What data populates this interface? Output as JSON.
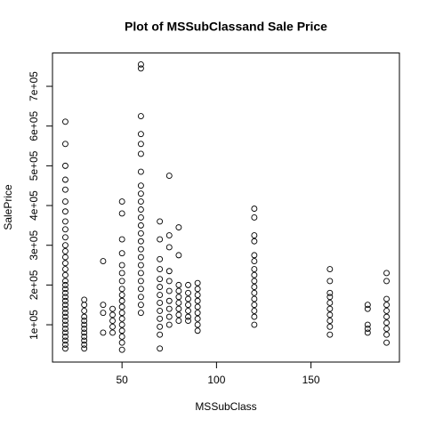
{
  "chart_data": {
    "type": "scatter",
    "title": "Plot of MSSubClassand Sale Price",
    "x_label": "MSSubClass",
    "y_label": "SalePrice",
    "xlim": [
      13.2,
      196.8
    ],
    "ylim": [
      6096,
      783804
    ],
    "xticks": [
      50,
      100,
      150
    ],
    "yticks": [
      {
        "value": 100000,
        "label": "1e+05"
      },
      {
        "value": 200000,
        "label": "2e+05"
      },
      {
        "value": 300000,
        "label": "3e+05"
      },
      {
        "value": 400000,
        "label": "4e+05"
      },
      {
        "value": 500000,
        "label": "5e+05"
      },
      {
        "value": 600000,
        "label": "6e+05"
      },
      {
        "value": 700000,
        "label": "7e+05"
      }
    ],
    "color": "#000000",
    "x": [
      20,
      20,
      20,
      20,
      20,
      20,
      20,
      20,
      20,
      20,
      20,
      20,
      20,
      20,
      20,
      20,
      20,
      20,
      20,
      20,
      20,
      20,
      20,
      20,
      20,
      20,
      20,
      20,
      20,
      20,
      20,
      20,
      20,
      20,
      30,
      30,
      30,
      30,
      30,
      30,
      30,
      30,
      30,
      30,
      30,
      30,
      40,
      40,
      40,
      40,
      45,
      45,
      45,
      45,
      45,
      50,
      50,
      50,
      50,
      50,
      50,
      50,
      50,
      50,
      50,
      50,
      50,
      50,
      50,
      50,
      50,
      50,
      50,
      60,
      60,
      60,
      60,
      60,
      60,
      60,
      60,
      60,
      60,
      60,
      60,
      60,
      60,
      60,
      60,
      60,
      60,
      60,
      60,
      60,
      60,
      60,
      60,
      70,
      70,
      70,
      70,
      70,
      70,
      70,
      70,
      70,
      70,
      70,
      70,
      70,
      75,
      75,
      75,
      75,
      75,
      75,
      75,
      75,
      75,
      75,
      80,
      80,
      80,
      80,
      80,
      80,
      80,
      80,
      80,
      85,
      85,
      85,
      85,
      85,
      85,
      85,
      90,
      90,
      90,
      90,
      90,
      90,
      90,
      90,
      90,
      120,
      120,
      120,
      120,
      120,
      120,
      120,
      120,
      120,
      120,
      120,
      120,
      120,
      120,
      120,
      120,
      160,
      160,
      160,
      160,
      160,
      160,
      160,
      160,
      160,
      160,
      180,
      180,
      180,
      180,
      180,
      190,
      190,
      190,
      190,
      190,
      190,
      190,
      190,
      190,
      190
    ],
    "values": [
      611000,
      555000,
      500000,
      465000,
      440000,
      410000,
      385000,
      360000,
      340000,
      320000,
      300000,
      285000,
      270000,
      255000,
      240000,
      225000,
      210000,
      200000,
      190000,
      180000,
      170000,
      160000,
      150000,
      140000,
      130000,
      120000,
      110000,
      100000,
      90000,
      80000,
      70000,
      60000,
      50000,
      40000,
      163000,
      150000,
      135000,
      120000,
      110000,
      100000,
      90000,
      80000,
      70000,
      60000,
      50000,
      40000,
      260000,
      150000,
      130000,
      80000,
      140000,
      125000,
      110000,
      95000,
      80000,
      410000,
      380000,
      315000,
      280000,
      250000,
      230000,
      210000,
      190000,
      175000,
      160000,
      145000,
      130000,
      115000,
      100000,
      85000,
      70000,
      55000,
      37000,
      755000,
      745000,
      625000,
      580000,
      555000,
      530000,
      485000,
      450000,
      430000,
      410000,
      390000,
      370000,
      350000,
      330000,
      310000,
      290000,
      270000,
      250000,
      230000,
      210000,
      190000,
      170000,
      150000,
      130000,
      360000,
      315000,
      265000,
      240000,
      215000,
      195000,
      175000,
      155000,
      135000,
      115000,
      95000,
      75000,
      40000,
      475000,
      325000,
      295000,
      235000,
      210000,
      185000,
      160000,
      140000,
      120000,
      100000,
      345000,
      275000,
      200000,
      185000,
      170000,
      155000,
      140000,
      125000,
      110000,
      200000,
      180000,
      165000,
      150000,
      135000,
      120000,
      110000,
      205000,
      190000,
      175000,
      160000,
      145000,
      130000,
      115000,
      100000,
      85000,
      392000,
      370000,
      325000,
      310000,
      275000,
      260000,
      240000,
      225000,
      210000,
      195000,
      180000,
      165000,
      150000,
      135000,
      120000,
      100000,
      240000,
      210000,
      180000,
      170000,
      155000,
      140000,
      125000,
      110000,
      95000,
      75000,
      150000,
      140000,
      100000,
      90000,
      80000,
      230000,
      210000,
      165000,
      150000,
      135000,
      120000,
      105000,
      90000,
      75000,
      55000
    ]
  }
}
